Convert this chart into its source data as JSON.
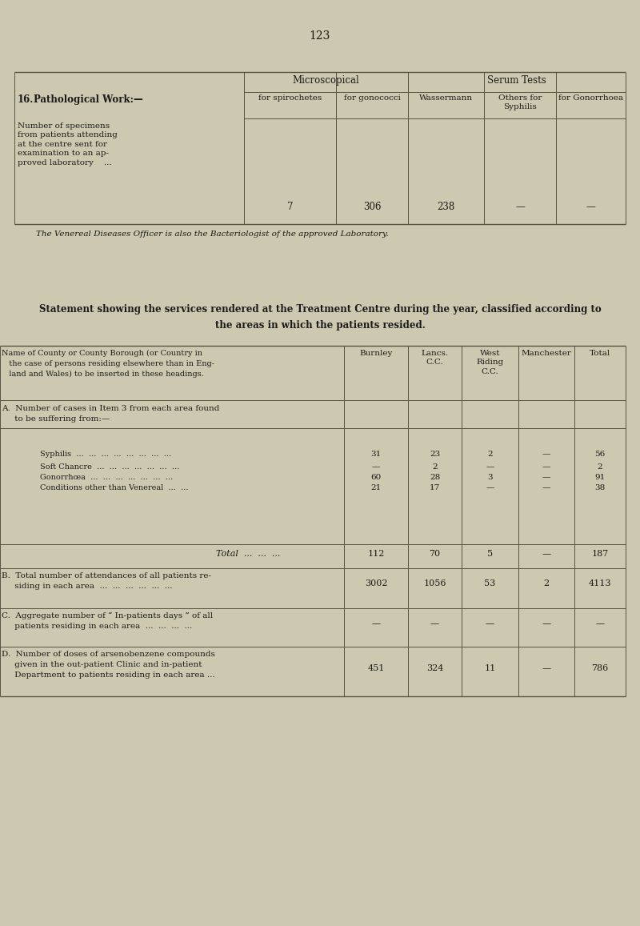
{
  "page_number": "123",
  "bg_color": "#cdc9b0",
  "text_color": "#1a1a1a",
  "line_color": "#555544",
  "table1_col_group1": "Microscopical",
  "table1_col_group2": "Serum Tests",
  "table1_col_headers": [
    "for spirochetes",
    "for gonococci",
    "Wassermann",
    "Others for\nSyphilis",
    "for Gonorrhoea"
  ],
  "table1_item_label": "16.",
  "table1_title_row": "Pathological Work:—",
  "table1_row_label": "Number of specimens\nfrom patients attending\nat the centre sent for\nexamination to an ap-\nproved laboratory    ...",
  "table1_values": [
    "7",
    "306",
    "238",
    "—",
    "—"
  ],
  "table1_footnote": "The Venereal Diseases Officer is also the Bacteriologist of the approved Laboratory.",
  "statement_title_line1": "Statement showing the services rendered at the Treatment Centre during the year, classified according to",
  "statement_title_line2": "the areas in which the patients resided.",
  "table2_header_label_line1": "Name of County or County Borough (or Country in",
  "table2_header_label_line2": "   the case of persons residing elsewhere than in Eng-",
  "table2_header_label_line3": "   land and Wales) to be inserted in these headings.",
  "table2_area_cols": [
    "Burnley",
    "Lancs.\nC.C.",
    "West\nRiding\nC.C.",
    "Manchester",
    "Total"
  ],
  "section_A_label_line1": "A.  Number of cases in Item 3 from each area found",
  "section_A_label_line2": "     to be suffering from:—",
  "section_A_rows": [
    [
      "Syphilis  ...  ...  ...  ...  ...  ...  ...  ...",
      "31",
      "23",
      "2",
      "—",
      "56"
    ],
    [
      "Soft Chancre  ...  ...  ...  ...  ...  ...  ...",
      "—",
      "2",
      "—",
      "—",
      "2"
    ],
    [
      "Gonorrhœa  ...  ...  ...  ...  ...  ...  ...",
      "60",
      "28",
      "3",
      "—",
      "91"
    ],
    [
      "Conditions other than Venereal  ...  ...",
      "21",
      "17",
      "—",
      "—",
      "38"
    ]
  ],
  "total_row_label": "Total  ...  ...  ...",
  "total_row_values": [
    "112",
    "70",
    "5",
    "—",
    "187"
  ],
  "section_B_label_line1": "B.  Total number of attendances of all patients re-",
  "section_B_label_line2": "     siding in each area  ...  ...  ...  ...  ...  ...",
  "section_B_values": [
    "3002",
    "1056",
    "53",
    "2",
    "4113"
  ],
  "section_C_label_line1": "C.  Aggregate number of “ In-patients days ” of all",
  "section_C_label_line2": "     patients residing in each area  ...  ...  ...  ...",
  "section_C_values": [
    "—",
    "—",
    "—",
    "—",
    "—"
  ],
  "section_D_label_line1": "D.  Number of doses of arsenobenzene compounds",
  "section_D_label_line2": "     given in the out-patient Clinic and in-patient",
  "section_D_label_line3": "     Department to patients residing in each area ...",
  "section_D_values": [
    "451",
    "324",
    "11",
    "—",
    "786"
  ]
}
